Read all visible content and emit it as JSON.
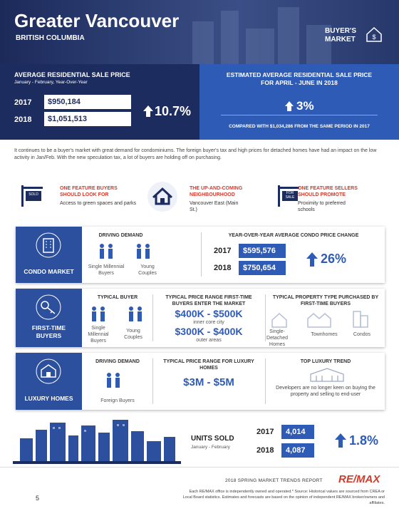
{
  "header": {
    "title": "Greater Vancouver",
    "subtitle": "BRITISH COLUMBIA",
    "badge": "BUYER'S MARKET"
  },
  "average_price": {
    "title": "AVERAGE RESIDENTIAL SALE PRICE",
    "period": "January - February, Year-Over-Year",
    "rows": [
      {
        "year": "2017",
        "price": "$950,184"
      },
      {
        "year": "2018",
        "price": "$1,051,513"
      }
    ],
    "change": "10.7%"
  },
  "estimated_price": {
    "title": "ESTIMATED AVERAGE RESIDENTIAL SALE PRICE FOR APRIL - JUNE IN 2018",
    "change": "3%",
    "note": "COMPARED WITH $1,034,286 FROM THE SAME PERIOD IN 2017"
  },
  "intro": "It continues to be a buyer's market with great demand for condominiums. The foreign buyer's tax and high prices for detached homes have had an impact on the low activity in Jan/Feb. With the new speculation tax, a lot of buyers are holding off on purchasing.",
  "features": [
    {
      "icon_label": "SOLD",
      "heading": "ONE FEATURE BUYERS SHOULD LOOK FOR",
      "text": "Access to green spaces and parks"
    },
    {
      "heading": "THE UP-AND-COMING NEIGHBOURHOOD",
      "text": "Vancouver East (Main St.)"
    },
    {
      "icon_label": "FOR SALE",
      "heading": "ONE FEATURE SELLERS SHOULD PROMOTE",
      "text": "Proximity to preferred schools"
    }
  ],
  "condo": {
    "label": "CONDO MARKET",
    "demand_title": "DRIVING DEMAND",
    "demand": [
      "Single Millennial Buyers",
      "Young Couples"
    ],
    "price_title": "YEAR-OVER-YEAR AVERAGE CONDO PRICE CHANGE",
    "rows": [
      {
        "year": "2017",
        "price": "$595,576"
      },
      {
        "year": "2018",
        "price": "$750,654"
      }
    ],
    "change": "26%"
  },
  "first_time": {
    "label": "FIRST-TIME BUYERS",
    "buyer_title": "TYPICAL BUYER",
    "buyers": [
      "Single Millennial Buyers",
      "Young Couples"
    ],
    "range_title": "TYPICAL PRICE RANGE FIRST-TIME BUYERS ENTER THE MARKET",
    "ranges": [
      {
        "price": "$400K - $500K",
        "area": "inner core city"
      },
      {
        "price": "$300K - $400K",
        "area": "outer areas"
      }
    ],
    "type_title": "TYPICAL PROPERTY TYPE PURCHASED BY FIRST-TIME BUYERS",
    "types": [
      "Single-Detached Homes",
      "Townhomes",
      "Condos"
    ]
  },
  "luxury": {
    "label": "LUXURY HOMES",
    "demand_title": "DRIVING DEMAND",
    "demand": "Foreign Buyers",
    "range_title": "TYPICAL PRICE RANGE FOR LUXURY HOMES",
    "range": "$3M - $5M",
    "trend_title": "TOP LUXURY TREND",
    "trend": "Developers are no longer keen on buying the property and selling to end-user"
  },
  "units": {
    "title": "UNITS SOLD",
    "period": "January - February",
    "rows": [
      {
        "year": "2017",
        "value": "4,014"
      },
      {
        "year": "2018",
        "value": "4,087"
      }
    ],
    "change": "1.8%"
  },
  "footer": {
    "report": "2018 SPRING MARKET TRENDS REPORT",
    "brand": "RE/MAX",
    "disclaimer": "Each RE/MAX office is independently owned and operated.* Source: Historical values are sourced from CREA or Local Board statistics. Estimates and forecasts are based on the opinion of independent RE/MAX broker/owners and affiliates.",
    "page": "5"
  }
}
